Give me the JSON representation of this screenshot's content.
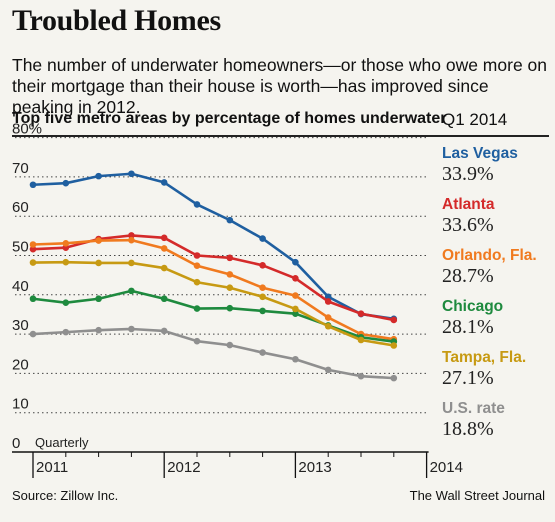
{
  "title": "Troubled Homes",
  "subtitle": "The number of underwater homeowners—or those who owe more on their mortgage than their house is worth—has improved since peaking in 2012.",
  "chart_heading": "Top five metro areas by percentage of homes underwater",
  "legend_heading": "Q1 2014",
  "source": "Source: Zillow Inc.",
  "credit": "The Wall Street Journal",
  "chart_data": {
    "type": "line",
    "x_interval": "Quarterly",
    "x": [
      "2011 Q1",
      "2011 Q2",
      "2011 Q3",
      "2011 Q4",
      "2012 Q1",
      "2012 Q2",
      "2012 Q3",
      "2012 Q4",
      "2013 Q1",
      "2013 Q2",
      "2013 Q3",
      "2013 Q4",
      "2014 Q1"
    ],
    "x_tick_labels": [
      "2011",
      "2012",
      "2013",
      "2014"
    ],
    "ylim": [
      0,
      80
    ],
    "y_ticks": [
      0,
      10,
      20,
      30,
      40,
      50,
      60,
      70,
      80
    ],
    "y_tick_labels": [
      "0",
      "10",
      "20",
      "30",
      "40",
      "50",
      "60",
      "70",
      "80%"
    ],
    "grid": true,
    "legend_position": "right",
    "series": [
      {
        "name": "Las Vegas",
        "color": "#1f5fa0",
        "latest_label": "33.9%",
        "values": [
          68,
          68.4,
          70.2,
          70.8,
          68.6,
          63,
          59,
          54.3,
          48.3,
          39.5,
          35.1,
          33.9,
          null
        ]
      },
      {
        "name": "Atlanta",
        "color": "#d42a2a",
        "latest_label": "33.6%",
        "values": [
          51.6,
          52,
          54.2,
          55.1,
          54.5,
          50,
          49.4,
          47.5,
          44.2,
          38.3,
          35.2,
          33.6,
          null
        ]
      },
      {
        "name": "Orlando, Fla.",
        "color": "#f07a1f",
        "latest_label": "28.7%",
        "values": [
          52.8,
          53.1,
          53.8,
          53.9,
          51.8,
          47.4,
          45.2,
          41.8,
          39.8,
          34.2,
          30,
          28.7,
          null
        ]
      },
      {
        "name": "Chicago",
        "color": "#1e8a3e",
        "latest_label": "28.1%",
        "values": [
          39,
          38,
          39,
          41,
          39,
          36.5,
          36.6,
          35.9,
          35.2,
          32.2,
          29.2,
          28.1,
          null
        ]
      },
      {
        "name": "Tampa, Fla.",
        "color": "#c79a13",
        "latest_label": "27.1%",
        "values": [
          48.2,
          48.3,
          48.1,
          48.1,
          46.8,
          43.2,
          41.8,
          39.5,
          36.4,
          32,
          28.5,
          27.1,
          null
        ]
      },
      {
        "name": "U.S. rate",
        "color": "#8f8f8f",
        "latest_label": "18.8%",
        "values": [
          30,
          30.5,
          31,
          31.3,
          30.8,
          28.2,
          27.2,
          25.3,
          23.6,
          20.9,
          19.3,
          18.8,
          null
        ]
      }
    ]
  }
}
